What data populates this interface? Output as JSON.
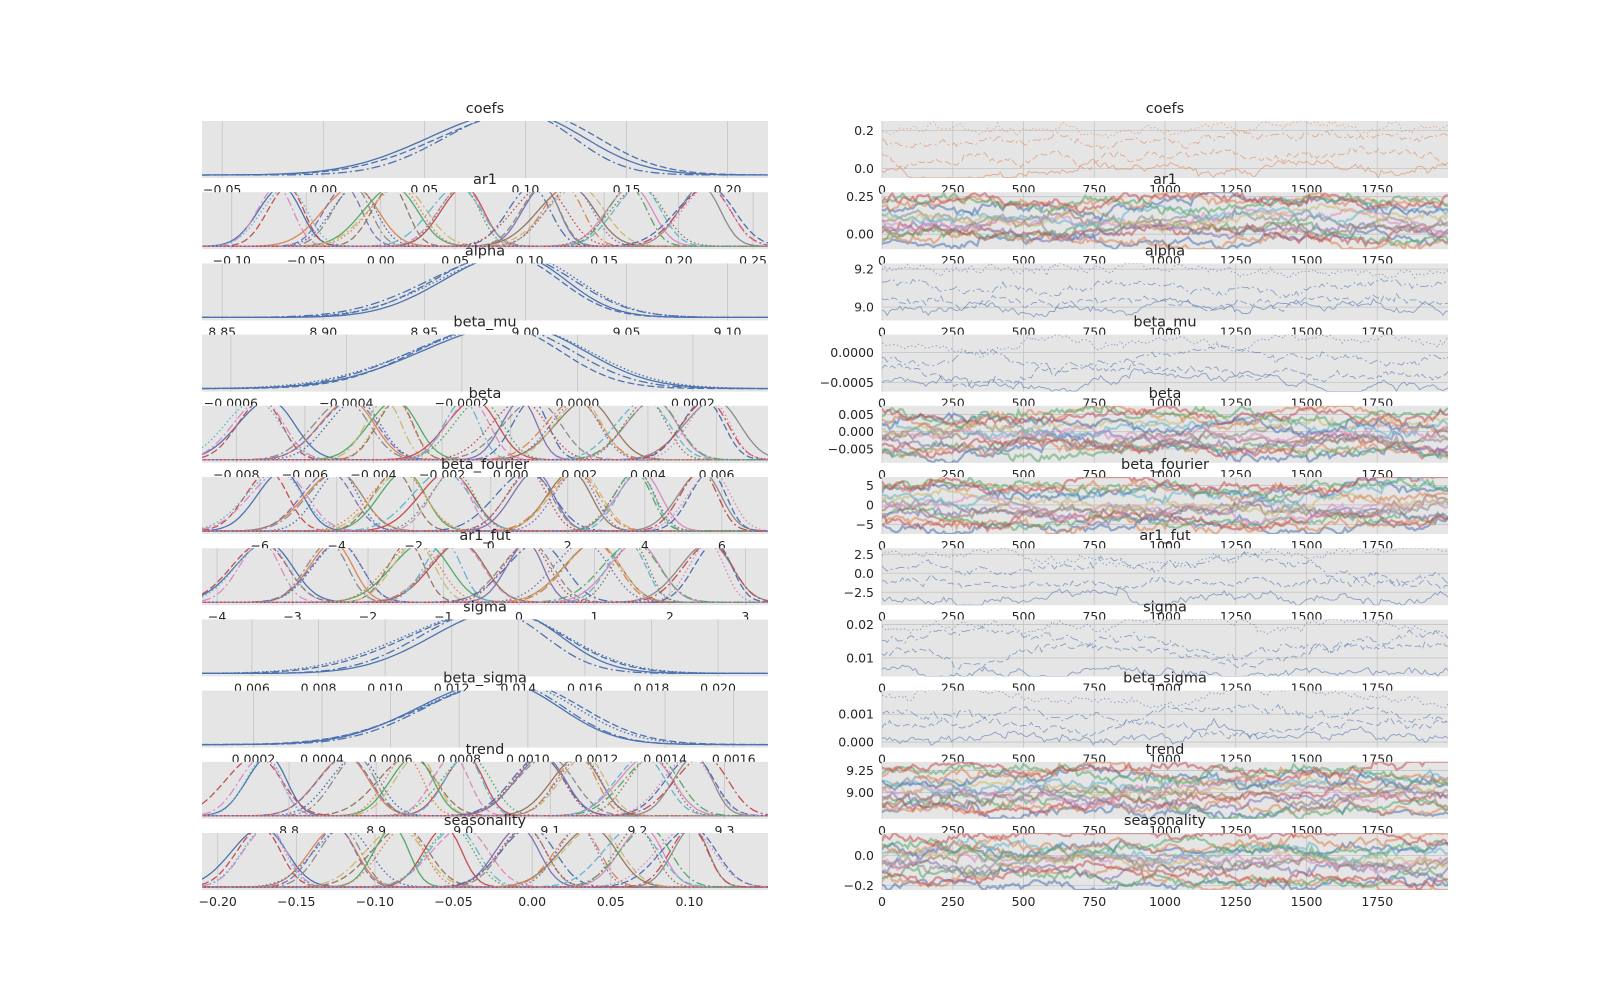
{
  "chart_data": {
    "type": "trace",
    "kind": "Bayesian MCMC trace plot (posterior density left, sampling trace right)",
    "background": "#e5e5e5",
    "grid": true,
    "colors": [
      "#4c72b0",
      "#dd8452",
      "#55a868",
      "#c44e52",
      "#8172b3",
      "#937860",
      "#da8bc3",
      "#8c8c8c",
      "#ccb974",
      "#64b5cd"
    ],
    "panels": [
      {
        "title": "coefs",
        "density": {
          "xticks": [
            "−0.05",
            "0.00",
            "0.05",
            "0.10",
            "0.15",
            "0.20"
          ],
          "xlim": [
            -0.06,
            0.22
          ]
        },
        "trace": {
          "yticks": [
            "0.2",
            "0.0"
          ],
          "ylim": [
            -0.05,
            0.25
          ],
          "xlim": [
            0,
            2000
          ]
        }
      },
      {
        "title": "ar1",
        "density": {
          "xticks": [
            "−0.10",
            "−0.05",
            "0.00",
            "0.05",
            "0.10",
            "0.15",
            "0.20",
            "0.25"
          ],
          "xlim": [
            -0.12,
            0.26
          ]
        },
        "trace": {
          "yticks": [
            "0.25",
            "0.00"
          ],
          "ylim": [
            -0.1,
            0.28
          ],
          "xlim": [
            0,
            2000
          ]
        }
      },
      {
        "title": "alpha",
        "density": {
          "xticks": [
            "8.85",
            "8.90",
            "8.95",
            "9.00",
            "9.05",
            "9.10"
          ],
          "xlim": [
            8.84,
            9.12
          ]
        },
        "trace": {
          "yticks": [
            "9.2",
            "9.0"
          ],
          "ylim": [
            8.93,
            9.23
          ],
          "xlim": [
            0,
            2000
          ]
        }
      },
      {
        "title": "beta_mu",
        "density": {
          "xticks": [
            "−0.0006",
            "−0.0004",
            "−0.0002",
            "0.0000",
            "0.0002"
          ],
          "xlim": [
            -0.00065,
            0.00033
          ]
        },
        "trace": {
          "yticks": [
            "0.0000",
            "−0.0005"
          ],
          "ylim": [
            -0.00065,
            0.0003
          ],
          "xlim": [
            0,
            2000
          ]
        }
      },
      {
        "title": "beta",
        "density": {
          "xticks": [
            "−0.008",
            "−0.006",
            "−0.004",
            "−0.002",
            "0.000",
            "0.002",
            "0.004",
            "0.006"
          ],
          "xlim": [
            -0.009,
            0.0075
          ]
        },
        "trace": {
          "yticks": [
            "0.005",
            "0.000",
            "−0.005"
          ],
          "ylim": [
            -0.009,
            0.0075
          ],
          "xlim": [
            0,
            2000
          ]
        }
      },
      {
        "title": "beta_fourier",
        "density": {
          "xticks": [
            "−6",
            "−4",
            "−2",
            "0",
            "2",
            "4",
            "6"
          ],
          "xlim": [
            -7.5,
            7.2
          ]
        },
        "trace": {
          "yticks": [
            "5",
            "0",
            "−5"
          ],
          "ylim": [
            -7.5,
            7.2
          ],
          "xlim": [
            0,
            2000
          ]
        }
      },
      {
        "title": "ar1_fut",
        "density": {
          "xticks": [
            "−4",
            "−3",
            "−2",
            "−1",
            "0",
            "1",
            "2",
            "3"
          ],
          "xlim": [
            -4.2,
            3.3
          ]
        },
        "trace": {
          "yticks": [
            "2.5",
            "0.0",
            "−2.5"
          ],
          "ylim": [
            -4.2,
            3.3
          ],
          "xlim": [
            0,
            2000
          ]
        }
      },
      {
        "title": "sigma",
        "density": {
          "xticks": [
            "0.006",
            "0.008",
            "0.010",
            "0.012",
            "0.014",
            "0.016",
            "0.018",
            "0.020"
          ],
          "xlim": [
            0.0045,
            0.0215
          ]
        },
        "trace": {
          "yticks": [
            "0.02",
            "0.01"
          ],
          "ylim": [
            0.0045,
            0.0215
          ],
          "xlim": [
            0,
            2000
          ]
        }
      },
      {
        "title": "beta_sigma",
        "density": {
          "xticks": [
            "0.0002",
            "0.0004",
            "0.0006",
            "0.0008",
            "0.0010",
            "0.0012",
            "0.0014",
            "0.0016"
          ],
          "xlim": [
            5e-05,
            0.0017
          ]
        },
        "trace": {
          "yticks": [
            "0.001",
            "0.000"
          ],
          "ylim": [
            -0.0002,
            0.00185
          ],
          "xlim": [
            0,
            2000
          ]
        }
      },
      {
        "title": "trend",
        "density": {
          "xticks": [
            "8.8",
            "8.9",
            "9.0",
            "9.1",
            "9.2",
            "9.3"
          ],
          "xlim": [
            8.7,
            9.35
          ]
        },
        "trace": {
          "yticks": [
            "9.25",
            "9.00"
          ],
          "ylim": [
            8.7,
            9.35
          ],
          "xlim": [
            0,
            2000
          ]
        }
      },
      {
        "title": "seasonality",
        "density": {
          "xticks": [
            "−0.20",
            "−0.15",
            "−0.10",
            "−0.05",
            "0.00",
            "0.05",
            "0.10"
          ],
          "xlim": [
            -0.21,
            0.15
          ]
        },
        "trace": {
          "yticks": [
            "0.0",
            "−0.2"
          ],
          "ylim": [
            -0.23,
            0.15
          ],
          "xlim": [
            0,
            2000
          ]
        }
      }
    ],
    "trace_xticks": [
      "0",
      "250",
      "500",
      "750",
      "1000",
      "1250",
      "1500",
      "1750"
    ]
  }
}
